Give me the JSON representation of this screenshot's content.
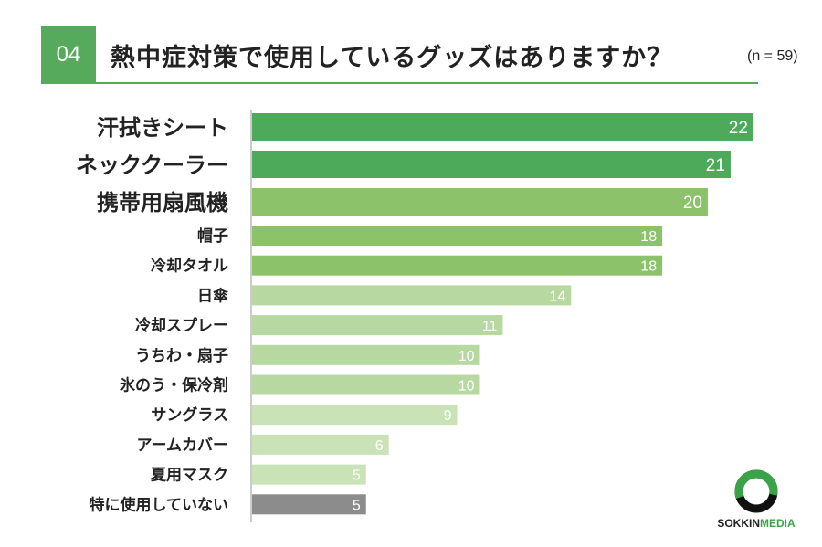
{
  "header": {
    "number": "04",
    "title": "熱中症対策で使用しているグッズはありますか？",
    "sample": "(n = 59)"
  },
  "chart_data": {
    "type": "bar",
    "orientation": "horizontal",
    "title": "熱中症対策で使用しているグッズはありますか？",
    "categories": [
      "汗拭きシート",
      "ネッククーラー",
      "携帯用扇風機",
      "帽子",
      "冷却タオル",
      "日傘",
      "冷却スプレー",
      "うちわ・扇子",
      "氷のう・保冷剤",
      "サングラス",
      "アームカバー",
      "夏用マスク",
      "特に使用していない"
    ],
    "values": [
      22,
      21,
      20,
      18,
      18,
      14,
      11,
      10,
      10,
      9,
      6,
      5,
      5
    ],
    "colors": [
      "#4caa5a",
      "#4caa5a",
      "#8cc36a",
      "#8cc36a",
      "#8cc36a",
      "#b7d8a0",
      "#b7d8a0",
      "#b7d8a0",
      "#b7d8a0",
      "#c9e3b6",
      "#c9e3b6",
      "#c9e3b6",
      "#8c8c8c"
    ],
    "emphasis_top": 3
  },
  "logo": {
    "name_part1": "SOKKIN",
    "name_part2": "MEDIA"
  }
}
